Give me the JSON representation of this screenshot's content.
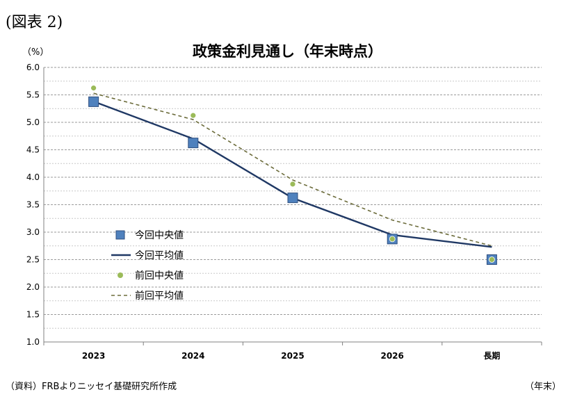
{
  "figure_label": "(図表 2)",
  "source": "（資料）FRBよりニッセイ基礎研究所作成",
  "chart_data": {
    "type": "line",
    "title": "政策金利見通し（年末時点）",
    "y_unit": "（%）",
    "x_unit": "（年末）",
    "categories": [
      "2023",
      "2024",
      "2025",
      "2026",
      "長期"
    ],
    "ylim": [
      1.0,
      6.0
    ],
    "y_ticks": [
      "6.0",
      "5.5",
      "5.0",
      "4.5",
      "4.0",
      "3.5",
      "3.0",
      "2.5",
      "2.0",
      "1.5",
      "1.0"
    ],
    "grid": "horizontal dashed",
    "legend_position": "left-center",
    "series": [
      {
        "name": "今回中央値",
        "kind": "marker-square",
        "color": "#4f81bd",
        "values": [
          5.375,
          4.625,
          3.625,
          2.875,
          2.5
        ]
      },
      {
        "name": "今回平均値",
        "kind": "line-solid",
        "color": "#1f3864",
        "values": [
          5.38,
          4.7,
          3.62,
          2.95,
          2.73
        ]
      },
      {
        "name": "前回中央値",
        "kind": "marker-dot",
        "color": "#9bbb59",
        "values": [
          5.625,
          5.125,
          3.875,
          2.875,
          2.5
        ]
      },
      {
        "name": "前回平均値",
        "kind": "line-dashed",
        "color": "#6b6b3a",
        "values": [
          5.53,
          5.05,
          3.95,
          3.22,
          2.75
        ]
      }
    ]
  }
}
